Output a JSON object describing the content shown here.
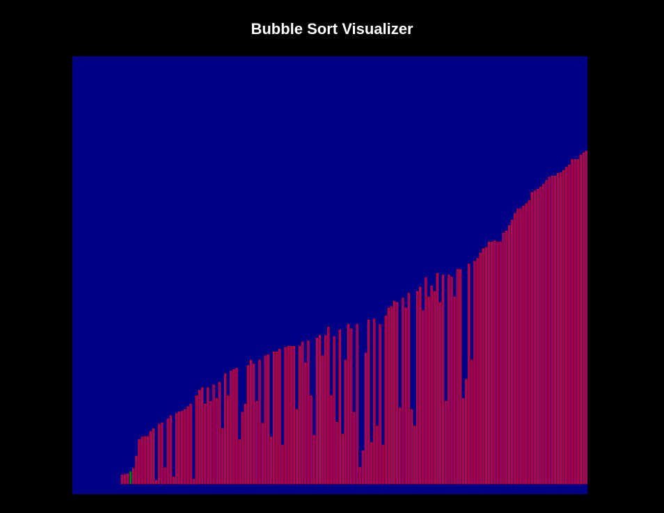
{
  "title": "Bubble Sort Visualizer",
  "colors": {
    "page_background": "#000000",
    "canvas_background": "#000087",
    "bar_fill": "#800080",
    "bar_outline": "#ff0000",
    "highlight_bar": "#008000",
    "title_text": "#ffffff"
  },
  "chart_data": {
    "type": "bar",
    "title": "Bubble Sort Visualizer",
    "xlabel": "",
    "ylabel": "",
    "ylim": [
      0,
      630
    ],
    "highlight_index": 3,
    "values": [
      16,
      17,
      18,
      22,
      28,
      50,
      80,
      85,
      86,
      86,
      95,
      100,
      6,
      108,
      111,
      29,
      118,
      124,
      12,
      128,
      131,
      132,
      135,
      140,
      145,
      8,
      160,
      170,
      175,
      145,
      175,
      150,
      180,
      155,
      185,
      100,
      200,
      160,
      205,
      208,
      210,
      80,
      130,
      145,
      215,
      225,
      218,
      150,
      225,
      110,
      233,
      235,
      85,
      240,
      240,
      245,
      70,
      248,
      250,
      250,
      250,
      135,
      250,
      258,
      220,
      260,
      160,
      88,
      265,
      270,
      233,
      270,
      285,
      160,
      268,
      112,
      280,
      90,
      225,
      290,
      282,
      130,
      290,
      30,
      60,
      238,
      298,
      75,
      300,
      105,
      290,
      70,
      305,
      320,
      322,
      332,
      330,
      138,
      338,
      320,
      347,
      135,
      105,
      350,
      358,
      315,
      375,
      340,
      360,
      350,
      383,
      330,
      380,
      150,
      380,
      376,
      340,
      390,
      390,
      155,
      190,
      400,
      225,
      405,
      410,
      420,
      428,
      430,
      440,
      440,
      442,
      440,
      440,
      456,
      460,
      470,
      480,
      492,
      500,
      501,
      505,
      510,
      515,
      530,
      533,
      536,
      540,
      545,
      552,
      558,
      560,
      560,
      565,
      566,
      570,
      576,
      580,
      590,
      590,
      590,
      598,
      602,
      605,
      610,
      612,
      625,
      628
    ]
  }
}
